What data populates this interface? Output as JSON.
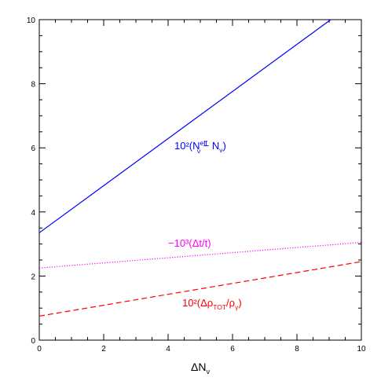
{
  "chart_data": {
    "type": "line",
    "title": "",
    "xlabel": "ΔN_ν",
    "xlabel_main": "ΔN",
    "xlabel_sub": "ν",
    "ylabel": "",
    "xlim": [
      0,
      10
    ],
    "ylim": [
      0,
      10
    ],
    "x_ticks": [
      "0",
      "2",
      "4",
      "6",
      "8",
      "10"
    ],
    "y_ticks": [
      "0",
      "2",
      "4",
      "6",
      "8",
      "10"
    ],
    "grid": false,
    "legend": "none",
    "series": [
      {
        "name": "10²(N_ν^eff − N_ν)",
        "color": "#0000ff",
        "style": "solid",
        "x": [
          0,
          9.05
        ],
        "y": [
          3.35,
          10
        ]
      },
      {
        "name": "−10³(Δt/t)",
        "color": "#ff00ff",
        "style": "dotted",
        "x": [
          0,
          10
        ],
        "y": [
          2.25,
          3.05
        ]
      },
      {
        "name": "10²(Δρ_TOT/ρ_γ)",
        "color": "#ff0000",
        "style": "dashed",
        "x": [
          0,
          10
        ],
        "y": [
          0.75,
          2.45
        ]
      }
    ],
    "annotations": {
      "blue": {
        "pre": "10²(N",
        "sup": "eff",
        "sub": "ν",
        "mid": " − N",
        "sub2": "ν",
        "post": ")",
        "color": "#0000ff"
      },
      "magenta": {
        "text": "−10³(Δt/t)",
        "color": "#ff00ff"
      },
      "red": {
        "pre": "10²(Δρ",
        "sub": "TOT",
        "mid": "/ρ",
        "sub2": "γ",
        "post": ")",
        "color": "#ff0000"
      }
    }
  }
}
